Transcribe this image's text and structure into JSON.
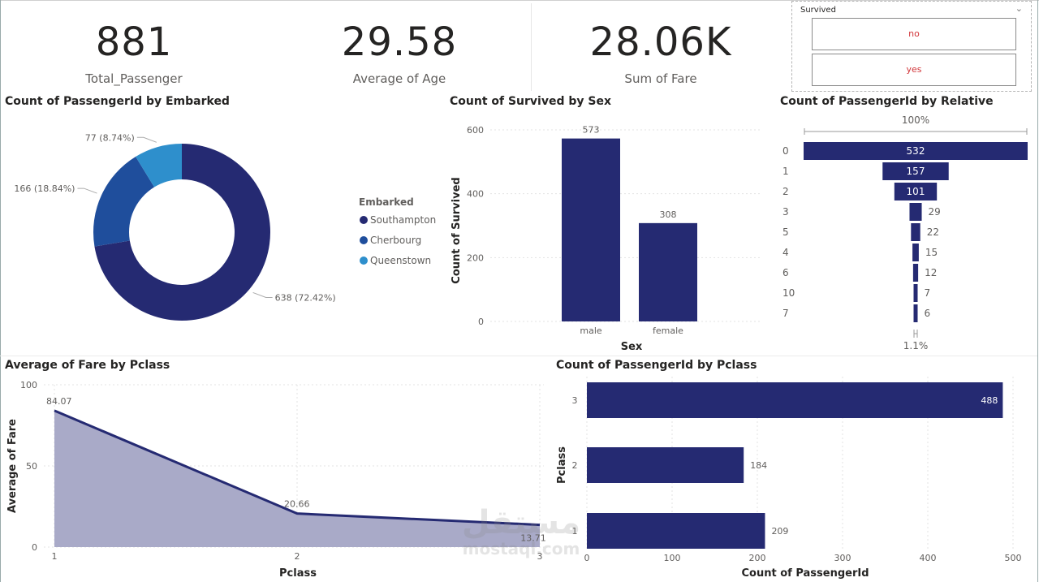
{
  "colors": {
    "navy": "#252A72",
    "mid": "#1F4E9C",
    "light": "#2E8FCC",
    "area": "#A9AAC8"
  },
  "kpis": [
    {
      "value": "881",
      "label": "Total_Passenger"
    },
    {
      "value": "29.58",
      "label": "Average of Age"
    },
    {
      "value": "28.06K",
      "label": "Sum of Fare"
    }
  ],
  "slicer": {
    "title": "Survived",
    "options": [
      "no",
      "yes"
    ]
  },
  "watermark": {
    "logo": "مستقل",
    "site": "mostaql.com"
  },
  "charts": {
    "donut": {
      "title": "Count of PassengerId by Embarked",
      "chart_data": {
        "type": "pie",
        "legend_title": "Embarked",
        "slices": [
          {
            "name": "Southampton",
            "value": 638,
            "label": "638 (72.42%)",
            "color": "#252A72"
          },
          {
            "name": "Cherbourg",
            "value": 166,
            "label": "166 (18.84%)",
            "color": "#1F4E9C"
          },
          {
            "name": "Queenstown",
            "value": 77,
            "label": "77 (8.74%)",
            "color": "#2E8FCC"
          }
        ]
      }
    },
    "sex": {
      "title": "Count of Survived by Sex",
      "chart_data": {
        "type": "bar",
        "categories": [
          "male",
          "female"
        ],
        "values": [
          573,
          308
        ],
        "xlabel": "Sex",
        "ylabel": "Count of Survived",
        "ylim": [
          0,
          600
        ],
        "yticks": [
          "0",
          "200",
          "400",
          "600"
        ]
      }
    },
    "relative": {
      "title": "Count of PassengerId by Relative",
      "chart_data": {
        "type": "funnel",
        "categories": [
          "0",
          "1",
          "2",
          "3",
          "5",
          "4",
          "6",
          "10",
          "7"
        ],
        "values": [
          532,
          157,
          101,
          29,
          22,
          15,
          12,
          7,
          6
        ],
        "top_label": "100%",
        "bottom_label": "1.1%"
      }
    },
    "fare": {
      "title": "Average of Fare by Pclass",
      "chart_data": {
        "type": "area",
        "x": [
          1,
          2,
          3
        ],
        "values": [
          84.07,
          20.66,
          13.71
        ],
        "value_labels": [
          "84.07",
          "20.66",
          "13.71"
        ],
        "xlabel": "Pclass",
        "ylabel": "Average of Fare",
        "ylim": [
          0,
          100
        ],
        "yticks": [
          "0",
          "50",
          "100"
        ],
        "xticks": [
          "1",
          "2",
          "3"
        ]
      }
    },
    "pclass": {
      "title": "Count of PassengerId by Pclass",
      "chart_data": {
        "type": "bar",
        "orientation": "horizontal",
        "categories": [
          "3",
          "2",
          "1"
        ],
        "values": [
          488,
          184,
          209
        ],
        "xlabel": "Count of PassengerId",
        "ylabel": "Pclass",
        "xlim": [
          0,
          500
        ],
        "xticks": [
          "0",
          "100",
          "200",
          "300",
          "400",
          "500"
        ]
      }
    }
  }
}
